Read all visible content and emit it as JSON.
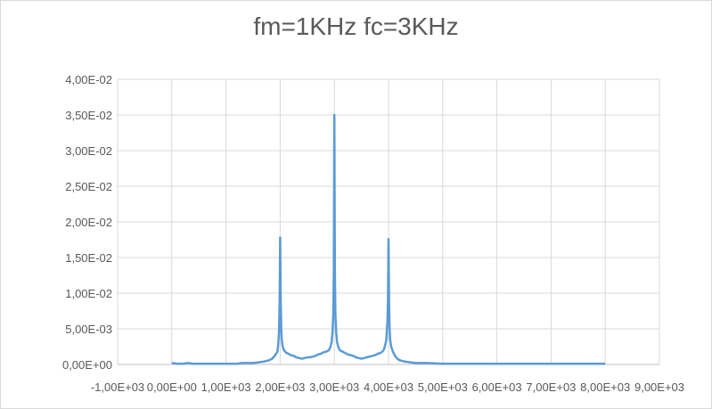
{
  "chart_data": {
    "type": "line",
    "title": "fm=1KHz fc=3KHz",
    "xlabel": "",
    "ylabel": "",
    "xlim": [
      -1000,
      9000
    ],
    "ylim": [
      0,
      0.04
    ],
    "grid": true,
    "legend": "none",
    "line_color": "#5b9bd5",
    "x_ticks": [
      {
        "value": -1000,
        "label": "-1,00E+03"
      },
      {
        "value": 0,
        "label": "0,00E+00"
      },
      {
        "value": 1000,
        "label": "1,00E+03"
      },
      {
        "value": 2000,
        "label": "2,00E+03"
      },
      {
        "value": 3000,
        "label": "3,00E+03"
      },
      {
        "value": 4000,
        "label": "4,00E+03"
      },
      {
        "value": 5000,
        "label": "5,00E+03"
      },
      {
        "value": 6000,
        "label": "6,00E+03"
      },
      {
        "value": 7000,
        "label": "7,00E+03"
      },
      {
        "value": 8000,
        "label": "8,00E+03"
      },
      {
        "value": 9000,
        "label": "9,00E+03"
      }
    ],
    "y_ticks": [
      {
        "value": 0,
        "label": "0,00E+00"
      },
      {
        "value": 0.005,
        "label": "5,00E-03"
      },
      {
        "value": 0.01,
        "label": "1,00E-02"
      },
      {
        "value": 0.015,
        "label": "1,50E-02"
      },
      {
        "value": 0.02,
        "label": "2,00E-02"
      },
      {
        "value": 0.025,
        "label": "2,50E-02"
      },
      {
        "value": 0.03,
        "label": "3,00E-02"
      },
      {
        "value": 0.035,
        "label": "3,50E-02"
      },
      {
        "value": 0.04,
        "label": "4,00E-02"
      }
    ],
    "series": [
      {
        "points": [
          [
            0,
            0.0002
          ],
          [
            100,
            0.0001
          ],
          [
            200,
            0.0001
          ],
          [
            300,
            0.0002
          ],
          [
            400,
            0.0001
          ],
          [
            500,
            0.0001
          ],
          [
            600,
            0.0001
          ],
          [
            700,
            0.0001
          ],
          [
            800,
            0.0001
          ],
          [
            900,
            0.0001
          ],
          [
            1000,
            0.0001
          ],
          [
            1100,
            0.0001
          ],
          [
            1200,
            0.0001
          ],
          [
            1300,
            0.0002
          ],
          [
            1400,
            0.0002
          ],
          [
            1500,
            0.0002
          ],
          [
            1600,
            0.0003
          ],
          [
            1700,
            0.0004
          ],
          [
            1800,
            0.0006
          ],
          [
            1850,
            0.0008
          ],
          [
            1900,
            0.0012
          ],
          [
            1950,
            0.0018
          ],
          [
            1960,
            0.0025
          ],
          [
            1970,
            0.0035
          ],
          [
            1980,
            0.005
          ],
          [
            1990,
            0.009
          ],
          [
            2000,
            0.0178
          ],
          [
            2010,
            0.009
          ],
          [
            2020,
            0.005
          ],
          [
            2030,
            0.0035
          ],
          [
            2040,
            0.0028
          ],
          [
            2060,
            0.0022
          ],
          [
            2080,
            0.0019
          ],
          [
            2100,
            0.0017
          ],
          [
            2150,
            0.0015
          ],
          [
            2200,
            0.0013
          ],
          [
            2250,
            0.0012
          ],
          [
            2300,
            0.001
          ],
          [
            2350,
            0.0009
          ],
          [
            2400,
            0.0008
          ],
          [
            2450,
            0.0009
          ],
          [
            2500,
            0.001
          ],
          [
            2550,
            0.001
          ],
          [
            2600,
            0.0011
          ],
          [
            2650,
            0.0012
          ],
          [
            2700,
            0.0014
          ],
          [
            2750,
            0.0015
          ],
          [
            2800,
            0.0017
          ],
          [
            2850,
            0.0018
          ],
          [
            2900,
            0.002
          ],
          [
            2930,
            0.0025
          ],
          [
            2950,
            0.0032
          ],
          [
            2965,
            0.0045
          ],
          [
            2980,
            0.007
          ],
          [
            2990,
            0.013
          ],
          [
            3000,
            0.035
          ],
          [
            3010,
            0.013
          ],
          [
            3020,
            0.007
          ],
          [
            3035,
            0.0045
          ],
          [
            3050,
            0.0032
          ],
          [
            3070,
            0.0025
          ],
          [
            3100,
            0.002
          ],
          [
            3150,
            0.0018
          ],
          [
            3200,
            0.0016
          ],
          [
            3250,
            0.0014
          ],
          [
            3300,
            0.0013
          ],
          [
            3350,
            0.0012
          ],
          [
            3400,
            0.001
          ],
          [
            3450,
            0.0009
          ],
          [
            3500,
            0.0008
          ],
          [
            3550,
            0.0009
          ],
          [
            3600,
            0.001
          ],
          [
            3650,
            0.0011
          ],
          [
            3700,
            0.0012
          ],
          [
            3750,
            0.0013
          ],
          [
            3800,
            0.0015
          ],
          [
            3850,
            0.0016
          ],
          [
            3900,
            0.0019
          ],
          [
            3920,
            0.0022
          ],
          [
            3940,
            0.0028
          ],
          [
            3960,
            0.0035
          ],
          [
            3970,
            0.005
          ],
          [
            3980,
            0.006
          ],
          [
            3990,
            0.009
          ],
          [
            4000,
            0.0176
          ],
          [
            4010,
            0.009
          ],
          [
            4020,
            0.005
          ],
          [
            4030,
            0.0035
          ],
          [
            4050,
            0.0025
          ],
          [
            4080,
            0.0018
          ],
          [
            4120,
            0.0012
          ],
          [
            4150,
            0.0009
          ],
          [
            4200,
            0.0006
          ],
          [
            4300,
            0.0004
          ],
          [
            4400,
            0.0003
          ],
          [
            4500,
            0.0002
          ],
          [
            4700,
            0.0002
          ],
          [
            5000,
            0.0001
          ],
          [
            5500,
            0.0001
          ],
          [
            6000,
            0.0001
          ],
          [
            6500,
            0.0001
          ],
          [
            7000,
            0.0001
          ],
          [
            7500,
            0.0001
          ],
          [
            8000,
            0.0001
          ]
        ]
      }
    ]
  }
}
